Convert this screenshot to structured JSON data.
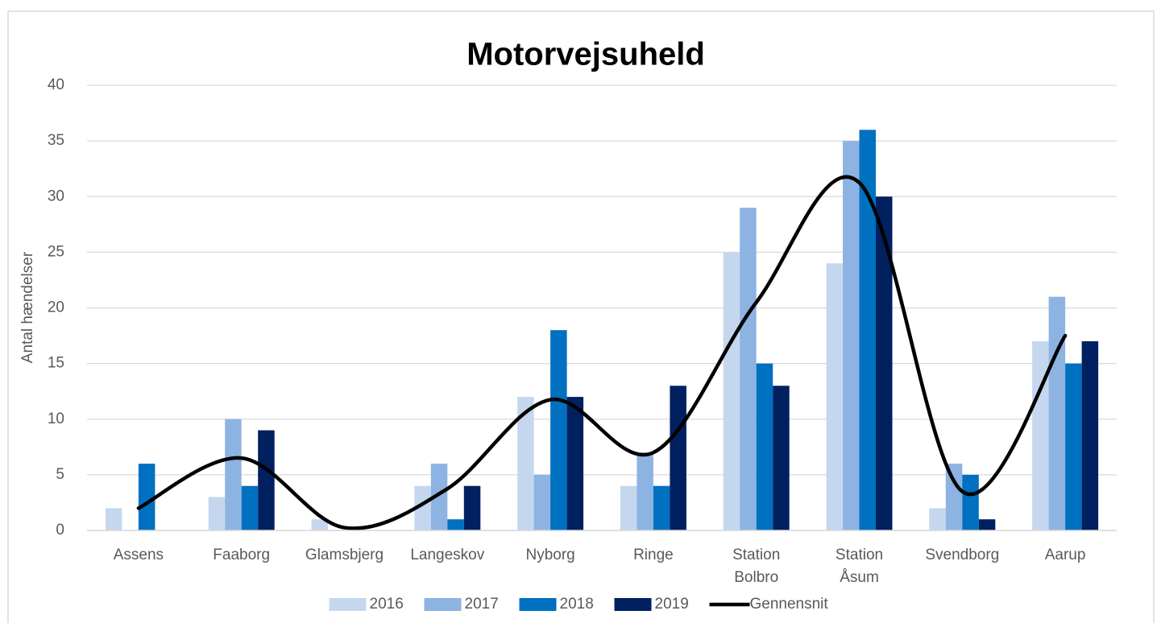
{
  "chart_data": {
    "type": "bar",
    "title": "Motorvejsuheld",
    "y_label": "Antal hændelser",
    "categories": [
      "Assens",
      "Faaborg",
      "Glamsbjerg",
      "Langeskov",
      "Nyborg",
      "Ringe",
      "Station Bolbro",
      "Station Åsum",
      "Svendborg",
      "Aarup"
    ],
    "series": [
      {
        "name": "2016",
        "color": "#c5d7ef",
        "values": [
          2,
          3,
          1,
          4,
          12,
          4,
          25,
          24,
          2,
          17
        ]
      },
      {
        "name": "2017",
        "color": "#8db3e2",
        "values": [
          0,
          10,
          0,
          6,
          5,
          7,
          29,
          35,
          6,
          21
        ]
      },
      {
        "name": "2018",
        "color": "#0070c0",
        "values": [
          6,
          4,
          0,
          1,
          18,
          4,
          15,
          36,
          5,
          15
        ]
      },
      {
        "name": "2019",
        "color": "#002060",
        "values": [
          0,
          9,
          0,
          4,
          12,
          13,
          13,
          30,
          1,
          17
        ]
      },
      {
        "name": "Gennensnit",
        "color": "#000000",
        "type": "line",
        "smooth": true,
        "values": [
          2,
          6.5,
          0.25,
          3.75,
          11.75,
          7,
          20.5,
          31.25,
          3.5,
          17.5
        ]
      }
    ],
    "ylim": [
      0,
      40
    ],
    "yticks": [
      0,
      5,
      10,
      15,
      20,
      25,
      30,
      35,
      40
    ],
    "grid": true,
    "legend": "bottom"
  }
}
